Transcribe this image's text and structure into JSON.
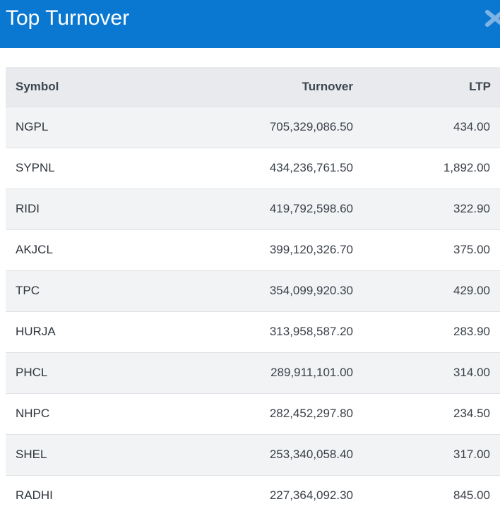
{
  "header": {
    "title": "Top Turnover",
    "close_icon": "close-icon",
    "background_color": "#0a78d1"
  },
  "table": {
    "columns": [
      "Symbol",
      "Turnover",
      "LTP"
    ],
    "rows": [
      {
        "symbol": "NGPL",
        "turnover": "705,329,086.50",
        "ltp": "434.00"
      },
      {
        "symbol": "SYPNL",
        "turnover": "434,236,761.50",
        "ltp": "1,892.00"
      },
      {
        "symbol": "RIDI",
        "turnover": "419,792,598.60",
        "ltp": "322.90"
      },
      {
        "symbol": "AKJCL",
        "turnover": "399,120,326.70",
        "ltp": "375.00"
      },
      {
        "symbol": "TPC",
        "turnover": "354,099,920.30",
        "ltp": "429.00"
      },
      {
        "symbol": "HURJA",
        "turnover": "313,958,587.20",
        "ltp": "283.90"
      },
      {
        "symbol": "PHCL",
        "turnover": "289,911,101.00",
        "ltp": "314.00"
      },
      {
        "symbol": "NHPC",
        "turnover": "282,452,297.80",
        "ltp": "234.50"
      },
      {
        "symbol": "SHEL",
        "turnover": "253,340,058.40",
        "ltp": "317.00"
      },
      {
        "symbol": "RADHI",
        "turnover": "227,364,092.30",
        "ltp": "845.00"
      }
    ]
  }
}
